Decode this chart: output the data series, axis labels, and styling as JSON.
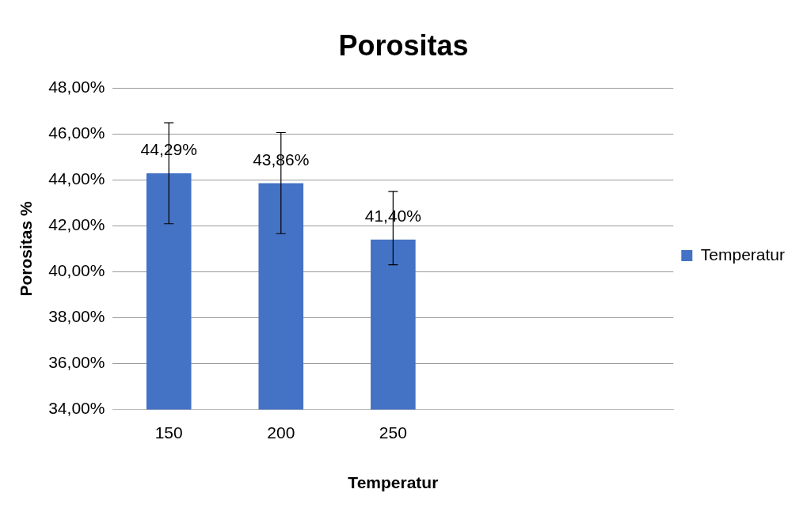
{
  "chart_data": {
    "type": "bar",
    "title": "Porositas",
    "xlabel": "Temperatur",
    "ylabel": "Porositas %",
    "categories": [
      "150",
      "200",
      "250",
      null,
      null
    ],
    "series": [
      {
        "name": "Temperatur",
        "color": "#4472c4",
        "values": [
          44.29,
          43.86,
          41.4,
          null,
          null
        ],
        "errors": [
          2.2,
          2.2,
          [
            40.3,
            43.5
          ],
          null,
          null
        ],
        "value_labels": [
          "44,29%",
          "43,86%",
          "41,40%",
          null,
          null
        ]
      }
    ],
    "ylim": [
      34,
      48
    ],
    "yticks": [
      {
        "value": 34,
        "label": "34,00%"
      },
      {
        "value": 36,
        "label": "36,00%"
      },
      {
        "value": 38,
        "label": "38,00%"
      },
      {
        "value": 40,
        "label": "40,00%"
      },
      {
        "value": 42,
        "label": "42,00%"
      },
      {
        "value": 44,
        "label": "44,00%"
      },
      {
        "value": 46,
        "label": "46,00%"
      },
      {
        "value": 48,
        "label": "48,00%"
      }
    ],
    "grid": "y",
    "legend": "right"
  }
}
